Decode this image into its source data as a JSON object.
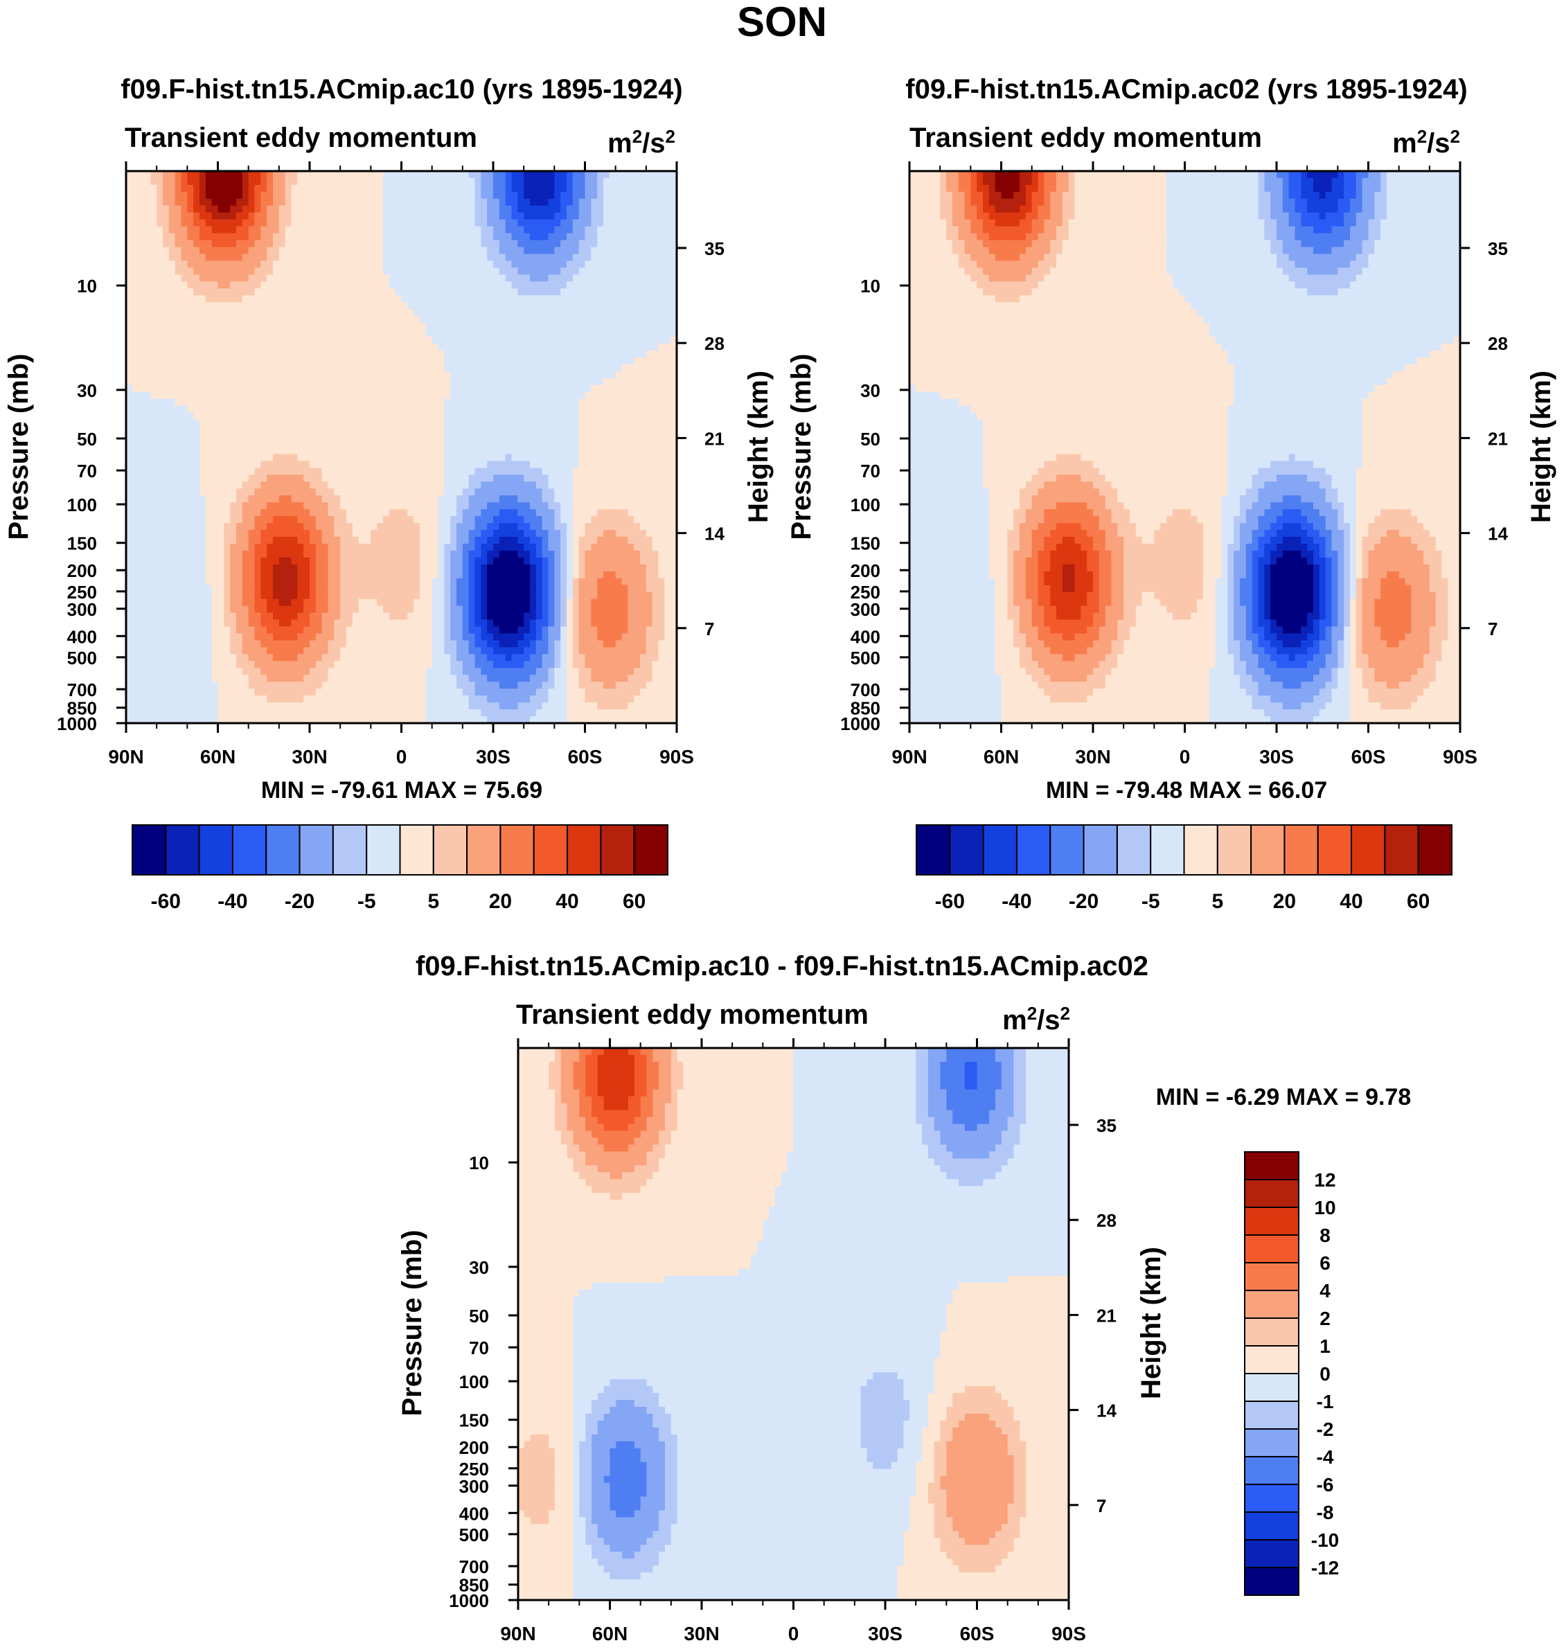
{
  "figure_title": "SON",
  "colors": {
    "panel_palette": [
      "#000080",
      "#0a22b8",
      "#1440e0",
      "#2a5cf5",
      "#4f7ef2",
      "#85a6f5",
      "#b4c8f8",
      "#d8e6fa",
      "#fde6d4",
      "#fbc7ac",
      "#f9a27c",
      "#f87b4c",
      "#f25a2c",
      "#dd3710",
      "#b4210c",
      "#850000"
    ],
    "diff_palette": [
      "#000080",
      "#0a22b8",
      "#1440e0",
      "#2a5cf5",
      "#4f7ef2",
      "#85a6f5",
      "#b4c8f8",
      "#d8e6fa",
      "#fde6d4",
      "#fbc7ac",
      "#f9a27c",
      "#f87b4c",
      "#f25a2c",
      "#dd3710",
      "#b4210c",
      "#850000"
    ]
  },
  "chart_data": [
    {
      "type": "heatmap",
      "id": "ac10",
      "title": "f09.F-hist.tn15.ACmip.ac10 (yrs 1895-1924)",
      "left_string": "Transient eddy momentum",
      "units_base": "m",
      "units_exp1": "2",
      "units_mid": "/s",
      "units_exp2": "2",
      "xlabel": "",
      "ylabel": "Pressure (mb)",
      "ylabel_right": "Height (km)",
      "x_ticks": [
        "90N",
        "60N",
        "30N",
        "0",
        "30S",
        "60S",
        "90S"
      ],
      "x_range": [
        90,
        -90
      ],
      "y_range_mb": [
        1000,
        3
      ],
      "y_ticks": [
        "10",
        "30",
        "50",
        "70",
        "100",
        "150",
        "200",
        "250",
        "300",
        "400",
        "500",
        "700",
        "850",
        "1000"
      ],
      "y_ticks_right": [
        "35",
        "28",
        "21",
        "14",
        "7"
      ],
      "min_max": "MIN = -79.61  MAX =  75.69",
      "features": [
        {
          "lat": 58,
          "p": 3,
          "value": 75.69
        },
        {
          "lat": 38,
          "p": 220,
          "value": 55
        },
        {
          "lat": 0,
          "p": 190,
          "value": 8
        },
        {
          "lat": -35,
          "p": 250,
          "value": -79.61
        },
        {
          "lat": -45,
          "p": 3,
          "value": -60
        },
        {
          "lat": 70,
          "p": 280,
          "value": -3
        },
        {
          "lat": -68,
          "p": 300,
          "value": 25
        }
      ],
      "colorbar_labels": [
        "-60",
        "-40",
        "-20",
        "-5",
        "5",
        "20",
        "40",
        "60"
      ]
    },
    {
      "type": "heatmap",
      "id": "ac02",
      "title": "f09.F-hist.tn15.ACmip.ac02 (yrs 1895-1924)",
      "left_string": "Transient eddy momentum",
      "units_base": "m",
      "units_exp1": "2",
      "units_mid": "/s",
      "units_exp2": "2",
      "xlabel": "",
      "ylabel": "Pressure (mb)",
      "ylabel_right": "Height (km)",
      "x_ticks": [
        "90N",
        "60N",
        "30N",
        "0",
        "30S",
        "60S",
        "90S"
      ],
      "x_range": [
        90,
        -90
      ],
      "y_range_mb": [
        1000,
        3
      ],
      "y_ticks": [
        "10",
        "30",
        "50",
        "70",
        "100",
        "150",
        "200",
        "250",
        "300",
        "400",
        "500",
        "700",
        "850",
        "1000"
      ],
      "y_ticks_right": [
        "35",
        "28",
        "21",
        "14",
        "7"
      ],
      "min_max": "MIN = -79.48  MAX =  66.07",
      "features": [
        {
          "lat": 58,
          "p": 3,
          "value": 66.07
        },
        {
          "lat": 38,
          "p": 220,
          "value": 52
        },
        {
          "lat": 0,
          "p": 190,
          "value": 8
        },
        {
          "lat": -35,
          "p": 250,
          "value": -79.48
        },
        {
          "lat": -45,
          "p": 3,
          "value": -55
        },
        {
          "lat": 70,
          "p": 280,
          "value": -3
        },
        {
          "lat": -68,
          "p": 300,
          "value": 25
        }
      ],
      "colorbar_labels": [
        "-60",
        "-40",
        "-20",
        "-5",
        "5",
        "20",
        "40",
        "60"
      ]
    },
    {
      "type": "heatmap",
      "id": "diff",
      "title": "f09.F-hist.tn15.ACmip.ac10 - f09.F-hist.tn15.ACmip.ac02",
      "left_string": "Transient eddy momentum",
      "units_base": "m",
      "units_exp1": "2",
      "units_mid": "/s",
      "units_exp2": "2",
      "xlabel": "",
      "ylabel": "Pressure (mb)",
      "ylabel_right": "Height (km)",
      "x_ticks": [
        "90N",
        "60N",
        "30N",
        "0",
        "30S",
        "60S",
        "90S"
      ],
      "x_range": [
        90,
        -90
      ],
      "y_range_mb": [
        1000,
        3
      ],
      "y_ticks": [
        "10",
        "30",
        "50",
        "70",
        "100",
        "150",
        "200",
        "250",
        "300",
        "400",
        "500",
        "700",
        "850",
        "1000"
      ],
      "y_ticks_right": [
        "35",
        "28",
        "21",
        "14",
        "7"
      ],
      "min_max": "MIN =  -6.29  MAX =   9.78",
      "features": [
        {
          "lat": 58,
          "p": 4,
          "value": 9.78
        },
        {
          "lat": -60,
          "p": 280,
          "value": 4
        },
        {
          "lat": 55,
          "p": 280,
          "value": -5
        },
        {
          "lat": -58,
          "p": 4,
          "value": -6.29
        },
        {
          "lat": -30,
          "p": 150,
          "value": -1.5
        },
        {
          "lat": 82,
          "p": 280,
          "value": 1.5
        }
      ],
      "colorbar_labels": [
        "12",
        "10",
        "8",
        "6",
        "4",
        "2",
        "1",
        "0",
        "-1",
        "-2",
        "-4",
        "-6",
        "-8",
        "-10",
        "-12"
      ]
    }
  ]
}
